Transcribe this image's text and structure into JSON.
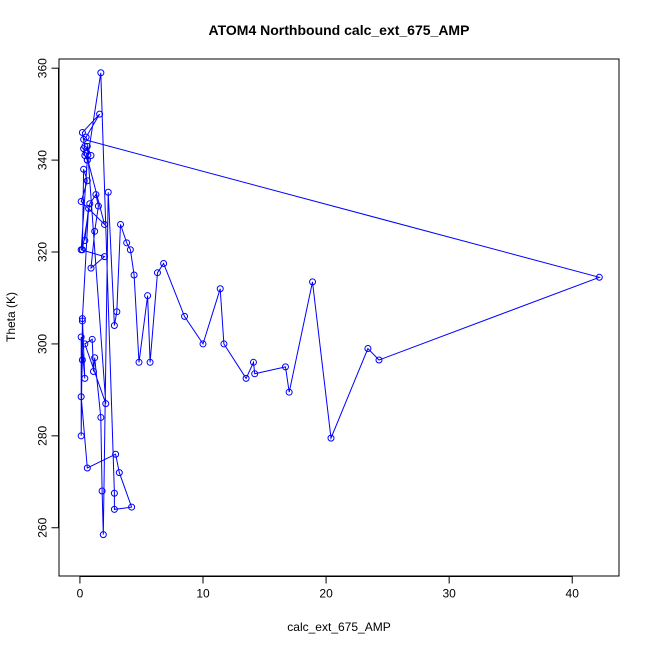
{
  "chart_data": {
    "type": "line",
    "title": "ATOM4 Northbound calc_ext_675_AMP",
    "xlabel": "calc_ext_675_AMP",
    "ylabel": "Theta (K)",
    "xlim": [
      -1.7,
      43.8
    ],
    "ylim": [
      249.5,
      362
    ],
    "xticks": [
      0,
      10,
      20,
      30,
      40
    ],
    "yticks": [
      260,
      280,
      300,
      320,
      340,
      360
    ],
    "grid": false,
    "legend": "none",
    "series": [
      {
        "color": "#0000ff",
        "marker": "open-circle",
        "x": [
          0.5,
          2.0,
          0.1,
          0.6,
          0.3,
          0.2,
          0.8,
          1.3,
          1.5,
          1.2,
          0.9,
          2.0,
          0.1,
          0.6,
          0.9,
          0.6,
          2.1,
          0.4,
          1.0,
          1.1,
          1.2,
          1.7,
          1.8,
          1.9,
          2.3,
          2.8,
          3.0,
          3.3,
          3.8,
          4.1,
          4.4,
          4.8,
          5.5,
          5.7,
          6.3,
          6.8,
          8.5,
          10.0,
          11.4,
          11.7,
          13.5,
          14.1,
          14.2,
          16.7,
          17.0,
          18.9,
          20.4,
          23.4,
          24.3,
          42.2,
          0.3,
          0.5,
          1.6,
          0.2,
          0.4,
          0.3,
          0.4,
          0.6,
          1.7,
          2.8,
          2.8,
          4.2,
          3.2,
          2.9,
          0.6,
          0.1,
          0.2,
          0.2,
          0.1,
          0.1,
          0.4,
          0.2,
          0.7,
          0.4
        ],
        "y": [
          341.5,
          326,
          331,
          335.5,
          338,
          320.5,
          330.5,
          332.5,
          330,
          324.5,
          316.5,
          319,
          320.5,
          340,
          341,
          343,
          287,
          300,
          301,
          294,
          297,
          284,
          268,
          258.5,
          333,
          304,
          307,
          326,
          322,
          320.5,
          315,
          296,
          310.5,
          296,
          315.5,
          317.5,
          306,
          300,
          312,
          300,
          292.5,
          296,
          293.5,
          295,
          289.5,
          313.5,
          279.5,
          299,
          296.5,
          314.5,
          344.5,
          345,
          350,
          346,
          343,
          342.5,
          341,
          340,
          359,
          267.5,
          264,
          264.5,
          272,
          276,
          273,
          288.5,
          296.5,
          305,
          280,
          301.5,
          292.5,
          305.5,
          329.5,
          322.5
        ]
      }
    ]
  }
}
